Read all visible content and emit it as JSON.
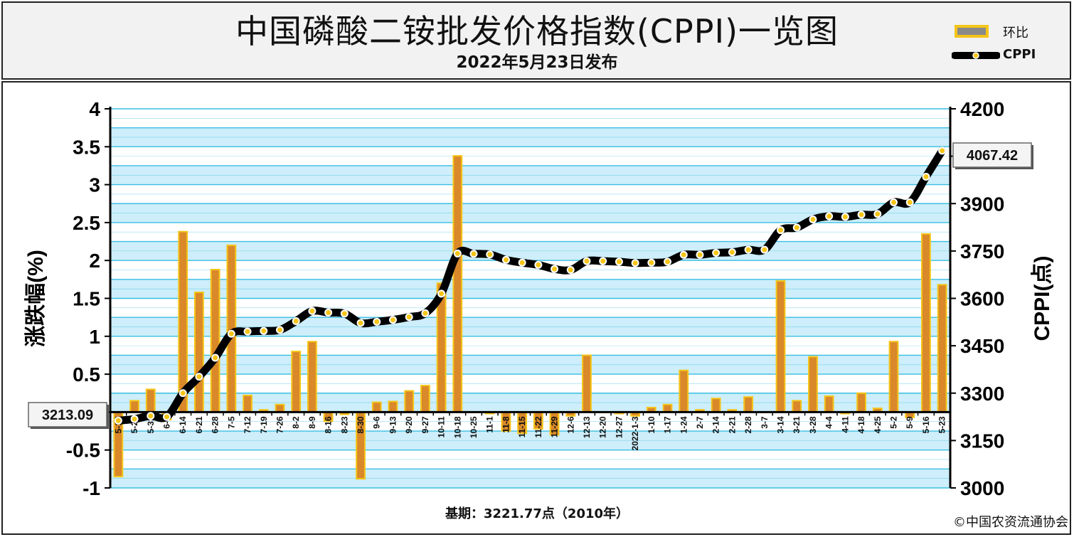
{
  "header": {
    "title": "中国磷酸二铵批发价格指数(CPPI)一览图",
    "subtitle": "2022年5月23日发布"
  },
  "legend": {
    "bar_label": "环比",
    "line_label": "CPPI"
  },
  "footer": {
    "base_note": "基期：3221.77点（2010年）",
    "copyright": "©中国农资流通协会"
  },
  "colors": {
    "bar_fill": "#d9882a",
    "bar_edge": "#f5c518",
    "line": "#000000",
    "marker": "#f5c518",
    "plot_bg_stripe": "#cdeefa",
    "gridline": "#26b8e0"
  },
  "chart_data": {
    "type": "bar+line",
    "ylabel_left": "涨跌幅(%)",
    "ylabel_right": "CPPI(点)",
    "left_ylim": [
      -1,
      4
    ],
    "left_ticks": [
      "-1",
      "-0.5",
      "0",
      "0.5",
      "1",
      "1.5",
      "2",
      "2.5",
      "3",
      "3.5",
      "4"
    ],
    "right_ylim": [
      3000,
      4200
    ],
    "right_ticks": [
      "3000",
      "3150",
      "3300",
      "3450",
      "3600",
      "3750",
      "3900",
      "4050",
      "4200"
    ],
    "categories": [
      "5-17",
      "5-24",
      "5-31",
      "6-7",
      "6-14",
      "6-21",
      "6-28",
      "7-5",
      "7-12",
      "7-19",
      "7-26",
      "8-2",
      "8-9",
      "8-16",
      "8-23",
      "8-30",
      "9-6",
      "9-13",
      "9-20",
      "9-27",
      "10-11",
      "10-18",
      "10-25",
      "11-1",
      "11-8",
      "11-15",
      "11-22",
      "11-29",
      "12-6",
      "12-13",
      "12-20",
      "12-27",
      "2022-1-3",
      "1-10",
      "1-17",
      "1-24",
      "2-7",
      "2-14",
      "2-21",
      "2-28",
      "3-7",
      "3-14",
      "3-21",
      "3-28",
      "4-4",
      "4-11",
      "4-18",
      "4-25",
      "5-2",
      "5-9",
      "5-16",
      "5-23"
    ],
    "series": [
      {
        "name": "环比",
        "kind": "bar",
        "values": [
          -0.85,
          0.15,
          0.3,
          -0.1,
          2.38,
          1.58,
          1.88,
          2.2,
          0.22,
          0.03,
          0.1,
          0.8,
          0.93,
          -0.12,
          -0.03,
          -0.88,
          0.13,
          0.14,
          0.28,
          0.35,
          1.7,
          3.38,
          0.0,
          -0.02,
          -0.25,
          -0.28,
          -0.22,
          -0.3,
          -0.05,
          0.75,
          0.0,
          -0.02,
          -0.05,
          0.06,
          0.1,
          0.55,
          0.03,
          0.18,
          0.03,
          0.2,
          0.0,
          1.73,
          0.15,
          0.73,
          0.21,
          -0.02,
          0.25,
          0.05,
          0.93,
          -0.07,
          2.35,
          1.68
        ]
      },
      {
        "name": "CPPI",
        "kind": "line",
        "values": [
          3213.09,
          3218,
          3228,
          3225,
          3300,
          3352,
          3412,
          3488,
          3495,
          3497,
          3500,
          3528,
          3560,
          3555,
          3552,
          3522,
          3526,
          3532,
          3541,
          3553,
          3615,
          3742,
          3741,
          3739,
          3722,
          3713,
          3706,
          3693,
          3690,
          3718,
          3718,
          3716,
          3712,
          3713,
          3716,
          3738,
          3738,
          3744,
          3746,
          3754,
          3754,
          3816,
          3824,
          3850,
          3860,
          3858,
          3865,
          3867,
          3904,
          3904,
          3985,
          4067.42
        ]
      }
    ],
    "callouts": [
      "3213.09",
      "4067.42"
    ]
  }
}
